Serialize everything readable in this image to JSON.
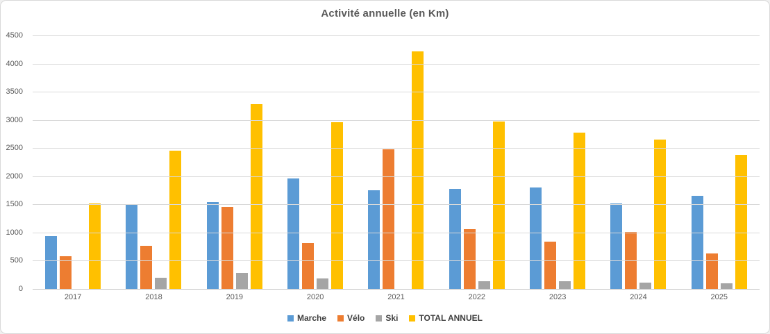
{
  "window": {
    "background": "#FFFFFF",
    "border_color": "#D9D9D9"
  },
  "chart_data": {
    "type": "bar",
    "title": "Activité annuelle (en Km)",
    "categories": [
      "2017",
      "2018",
      "2019",
      "2020",
      "2021",
      "2022",
      "2023",
      "2024",
      "2025"
    ],
    "series": [
      {
        "name": "Marche",
        "color": "#5B9BD5",
        "values": [
          940,
          1495,
          1540,
          1965,
          1745,
          1775,
          1805,
          1520,
          1655
        ]
      },
      {
        "name": "Vélo",
        "color": "#ED7D31",
        "values": [
          575,
          765,
          1460,
          815,
          2475,
          1065,
          840,
          1005,
          630
        ]
      },
      {
        "name": "Ski",
        "color": "#A5A5A5",
        "values": [
          0,
          195,
          280,
          185,
          0,
          130,
          135,
          115,
          95
        ]
      },
      {
        "name": "TOTAL ANNUEL",
        "color": "#FFC000",
        "values": [
          1515,
          2455,
          3280,
          2965,
          4220,
          2970,
          2780,
          2650,
          2380
        ]
      }
    ],
    "xlabel": "",
    "ylabel": "",
    "ylim": [
      0,
      4500
    ],
    "ytick_step": 500,
    "yticks": [
      0,
      500,
      1000,
      1500,
      2000,
      2500,
      3000,
      3500,
      4000,
      4500
    ],
    "grid": true,
    "legend_position": "bottom",
    "text_color": "#595959",
    "gridline_color": "#D9D9D9"
  }
}
